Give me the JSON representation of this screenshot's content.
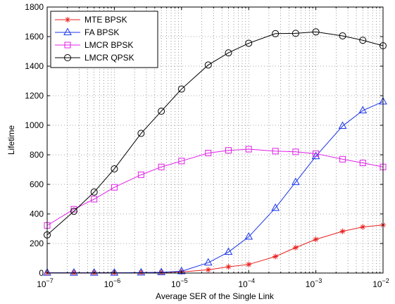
{
  "chart_data": {
    "type": "line",
    "title": "",
    "xlabel": "Average SER of the Single Link",
    "ylabel": "Lifetime",
    "x_scale": "log",
    "xlim": [
      1e-07,
      0.01
    ],
    "ylim": [
      0,
      1800
    ],
    "x_ticks": [
      {
        "value": 1e-07,
        "base": "10",
        "exp": "−7"
      },
      {
        "value": 1e-06,
        "base": "10",
        "exp": "−6"
      },
      {
        "value": 1e-05,
        "base": "10",
        "exp": "−5"
      },
      {
        "value": 0.0001,
        "base": "10",
        "exp": "−4"
      },
      {
        "value": 0.001,
        "base": "10",
        "exp": "−3"
      },
      {
        "value": 0.01,
        "base": "10",
        "exp": "−2"
      }
    ],
    "y_ticks": [
      "0",
      "200",
      "400",
      "600",
      "800",
      "1000",
      "1200",
      "1400",
      "1600",
      "1800"
    ],
    "grid": true,
    "legend_position": "top-left",
    "x": [
      1e-07,
      2.5e-07,
      5e-07,
      1e-06,
      2.5e-06,
      5e-06,
      1e-05,
      2.5e-05,
      5e-05,
      0.0001,
      0.00025,
      0.0005,
      0.001,
      0.0025,
      0.005,
      0.01
    ],
    "series": [
      {
        "name": "MTE BPSK",
        "color": "#e8201c",
        "marker": "star",
        "values": [
          2,
          2,
          2,
          2,
          3,
          4,
          8,
          22,
          42,
          58,
          112,
          172,
          228,
          282,
          312,
          325
        ]
      },
      {
        "name": "FA BPSK",
        "color": "#1a35e8",
        "marker": "triangle",
        "values": [
          2,
          2,
          2,
          2,
          3,
          5,
          12,
          70,
          142,
          245,
          440,
          615,
          790,
          995,
          1100,
          1160
        ]
      },
      {
        "name": "LMCR BPSK",
        "color": "#e020e8",
        "marker": "square",
        "values": [
          322,
          432,
          500,
          580,
          665,
          718,
          758,
          812,
          830,
          838,
          825,
          820,
          808,
          770,
          745,
          718
        ]
      },
      {
        "name": "LMCR QPSK",
        "color": "#000000",
        "marker": "circle",
        "values": [
          258,
          418,
          548,
          705,
          945,
          1095,
          1245,
          1408,
          1490,
          1555,
          1620,
          1622,
          1632,
          1605,
          1575,
          1538
        ]
      }
    ]
  }
}
